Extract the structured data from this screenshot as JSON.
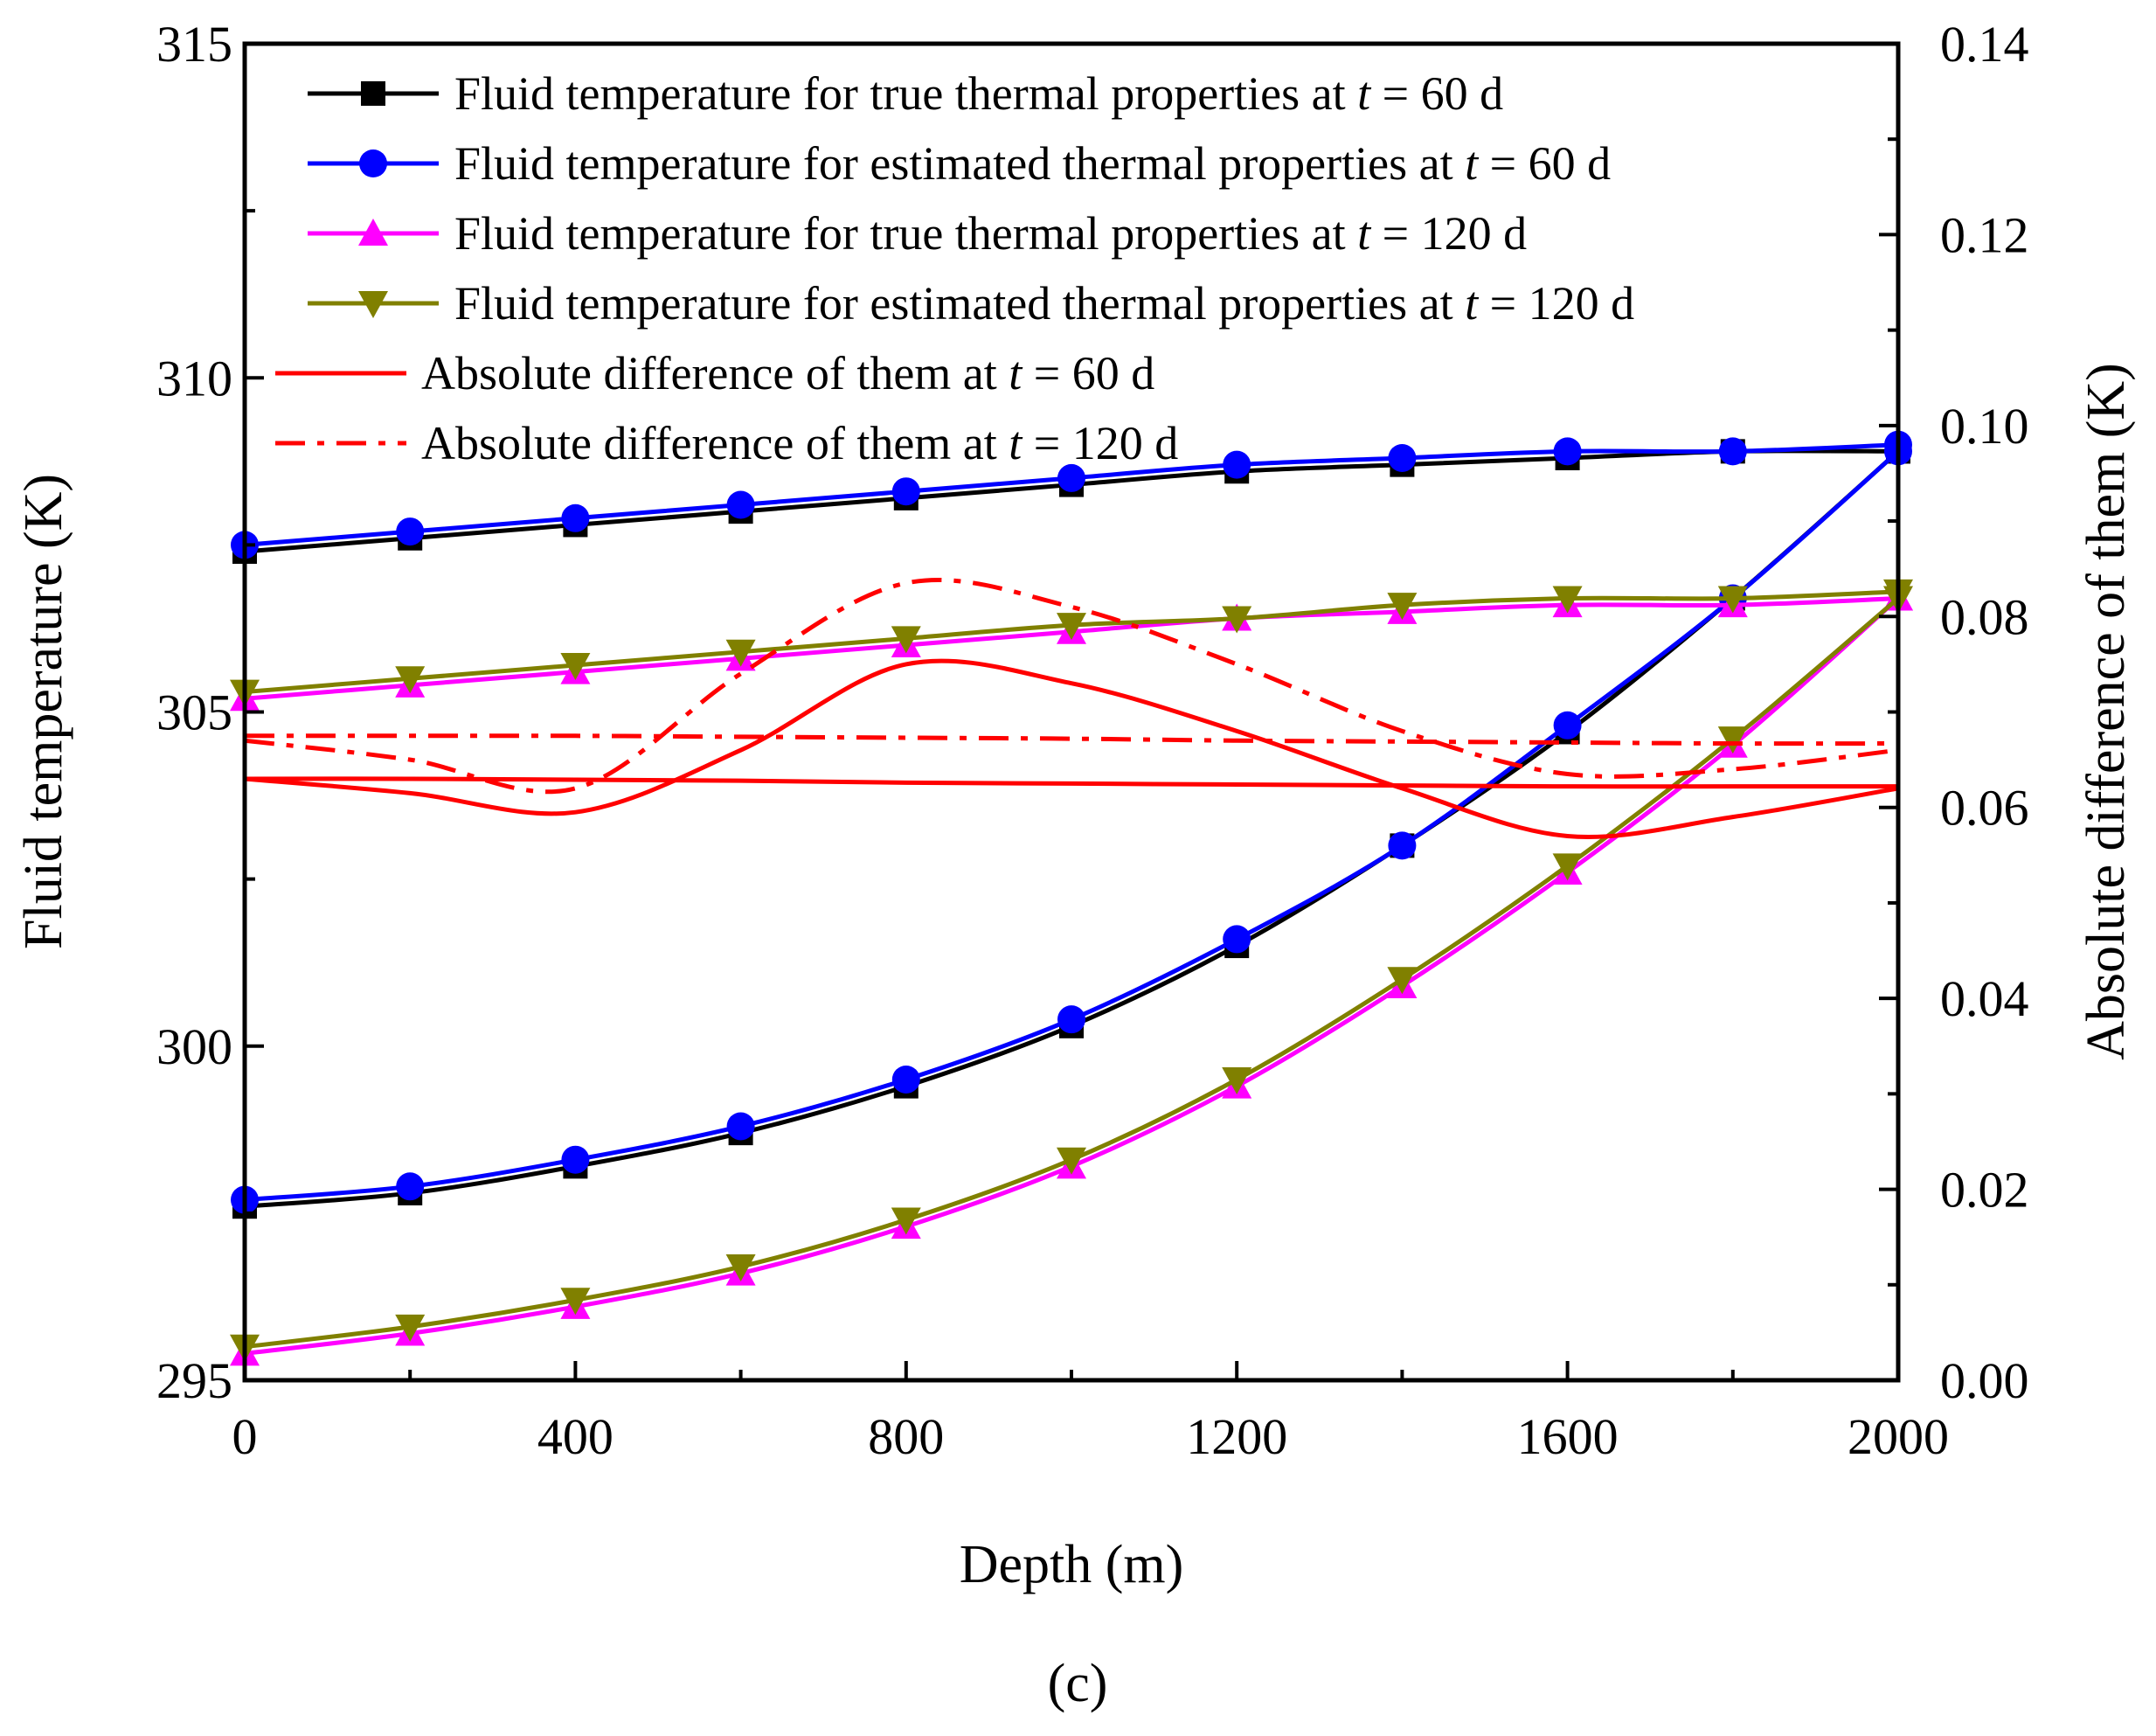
{
  "chart_data": {
    "type": "line",
    "panel_label": "(c)",
    "xlabel": "Depth (m)",
    "ylabel_left": "Fluid temperature (K)",
    "ylabel_right": "Absolute difference of them (K)",
    "xlim": [
      0,
      2000
    ],
    "ylim_left": [
      295,
      315
    ],
    "ylim_right": [
      0,
      0.14
    ],
    "x_ticks": [
      0,
      400,
      800,
      1200,
      1600,
      2000
    ],
    "x_tick_labels": [
      "0",
      "400",
      "800",
      "1200",
      "1600",
      "2000"
    ],
    "y_left_ticks": [
      295,
      300,
      305,
      310,
      315
    ],
    "y_left_tick_labels": [
      "295",
      "300",
      "305",
      "310",
      "315"
    ],
    "y_right_ticks": [
      0,
      0.02,
      0.04,
      0.06,
      0.08,
      0.1,
      0.12,
      0.14
    ],
    "y_right_tick_labels": [
      "0.00",
      "0.02",
      "0.04",
      "0.06",
      "0.08",
      "0.10",
      "0.12",
      "0.14"
    ],
    "legend": [
      {
        "prefix": "Fluid temperature for true thermal properties at ",
        "var": "t",
        "suffix": " = 60 d"
      },
      {
        "prefix": "Fluid temperature for estimated thermal properties at ",
        "var": "t",
        "suffix": " = 60 d"
      },
      {
        "prefix": "Fluid temperature for true thermal properties at ",
        "var": "t",
        "suffix": " = 120 d"
      },
      {
        "prefix": "Fluid temperature for estimated thermal properties at ",
        "var": "t",
        "suffix": " = 120 d"
      },
      {
        "prefix": "Absolute difference of them at ",
        "var": "t",
        "suffix": " = 60 d"
      },
      {
        "prefix": "Absolute difference of them at ",
        "var": "t",
        "suffix": " = 120 d"
      }
    ],
    "x": [
      0,
      200,
      400,
      600,
      800,
      1000,
      1200,
      1400,
      1600,
      1800,
      2000
    ],
    "series": [
      {
        "name": "Fluid temperature for true thermal properties at t = 60 d (down)",
        "axis": "left",
        "color": "#000000",
        "marker": "square",
        "dash": "solid",
        "values": [
          297.6,
          297.8,
          298.2,
          298.7,
          299.4,
          300.3,
          301.5,
          303.0,
          304.7,
          306.7,
          308.9
        ]
      },
      {
        "name": "Fluid temperature for true thermal properties at t = 60 d (up)",
        "axis": "left",
        "color": "#000000",
        "marker": "square",
        "dash": "solid",
        "values": [
          307.4,
          307.6,
          307.8,
          308.0,
          308.2,
          308.4,
          308.6,
          308.7,
          308.8,
          308.9,
          308.9
        ]
      },
      {
        "name": "Fluid temperature for estimated thermal properties at t = 60 d (down)",
        "axis": "left",
        "color": "#0000ff",
        "marker": "circle",
        "dash": "solid",
        "values": [
          297.7,
          297.9,
          298.3,
          298.8,
          299.5,
          300.4,
          301.6,
          303.0,
          304.8,
          306.7,
          308.9
        ]
      },
      {
        "name": "Fluid temperature for estimated thermal properties at t = 60 d (up)",
        "axis": "left",
        "color": "#0000ff",
        "marker": "circle",
        "dash": "solid",
        "values": [
          307.5,
          307.7,
          307.9,
          308.1,
          308.3,
          308.5,
          308.7,
          308.8,
          308.9,
          308.9,
          309.0
        ]
      },
      {
        "name": "Fluid temperature for true thermal properties at t = 120 d (down)",
        "axis": "left",
        "color": "#ff00ff",
        "marker": "triangle-up",
        "dash": "solid",
        "values": [
          295.4,
          295.7,
          296.1,
          296.6,
          297.3,
          298.2,
          299.4,
          300.9,
          302.6,
          304.5,
          306.7
        ]
      },
      {
        "name": "Fluid temperature for true thermal properties at t = 120 d (up)",
        "axis": "left",
        "color": "#ff00ff",
        "marker": "triangle-up",
        "dash": "solid",
        "values": [
          305.2,
          305.4,
          305.6,
          305.8,
          306.0,
          306.2,
          306.4,
          306.5,
          306.6,
          306.6,
          306.7
        ]
      },
      {
        "name": "Fluid temperature for estimated thermal properties at t = 120 d (down)",
        "axis": "left",
        "color": "#808000",
        "marker": "triangle-down",
        "dash": "solid",
        "values": [
          295.5,
          295.8,
          296.2,
          296.7,
          297.4,
          298.3,
          299.5,
          301.0,
          302.7,
          304.6,
          306.7
        ]
      },
      {
        "name": "Fluid temperature for estimated thermal properties at t = 120 d (up)",
        "axis": "left",
        "color": "#808000",
        "marker": "triangle-down",
        "dash": "solid",
        "values": [
          305.3,
          305.5,
          305.7,
          305.9,
          306.1,
          306.3,
          306.4,
          306.6,
          306.7,
          306.7,
          306.8
        ]
      },
      {
        "name": "Absolute difference of them at t = 60 d (down)",
        "axis": "right",
        "color": "#ff0000",
        "marker": "none",
        "dash": "solid",
        "values": [
          0.063,
          0.0615,
          0.0595,
          0.066,
          0.075,
          0.073,
          0.068,
          0.062,
          0.057,
          0.059,
          0.062
        ]
      },
      {
        "name": "Absolute difference of them at t = 60 d (up)",
        "axis": "right",
        "color": "#ff0000",
        "marker": "none",
        "dash": "solid",
        "values": [
          0.063,
          0.063,
          0.0629,
          0.0628,
          0.0626,
          0.0625,
          0.0624,
          0.0623,
          0.0622,
          0.0622,
          0.0622
        ]
      },
      {
        "name": "Absolute difference of them at t = 120 d (down)",
        "axis": "right",
        "color": "#ff0000",
        "marker": "none",
        "dash": "dash-dot",
        "values": [
          0.067,
          0.065,
          0.062,
          0.074,
          0.0835,
          0.081,
          0.075,
          0.068,
          0.0635,
          0.064,
          0.066
        ]
      },
      {
        "name": "Absolute difference of them at t = 120 d (up)",
        "axis": "right",
        "color": "#ff0000",
        "marker": "none",
        "dash": "dash-dot",
        "values": [
          0.0675,
          0.0675,
          0.0675,
          0.0674,
          0.0673,
          0.0672,
          0.067,
          0.0669,
          0.0668,
          0.0667,
          0.0667
        ]
      }
    ]
  }
}
